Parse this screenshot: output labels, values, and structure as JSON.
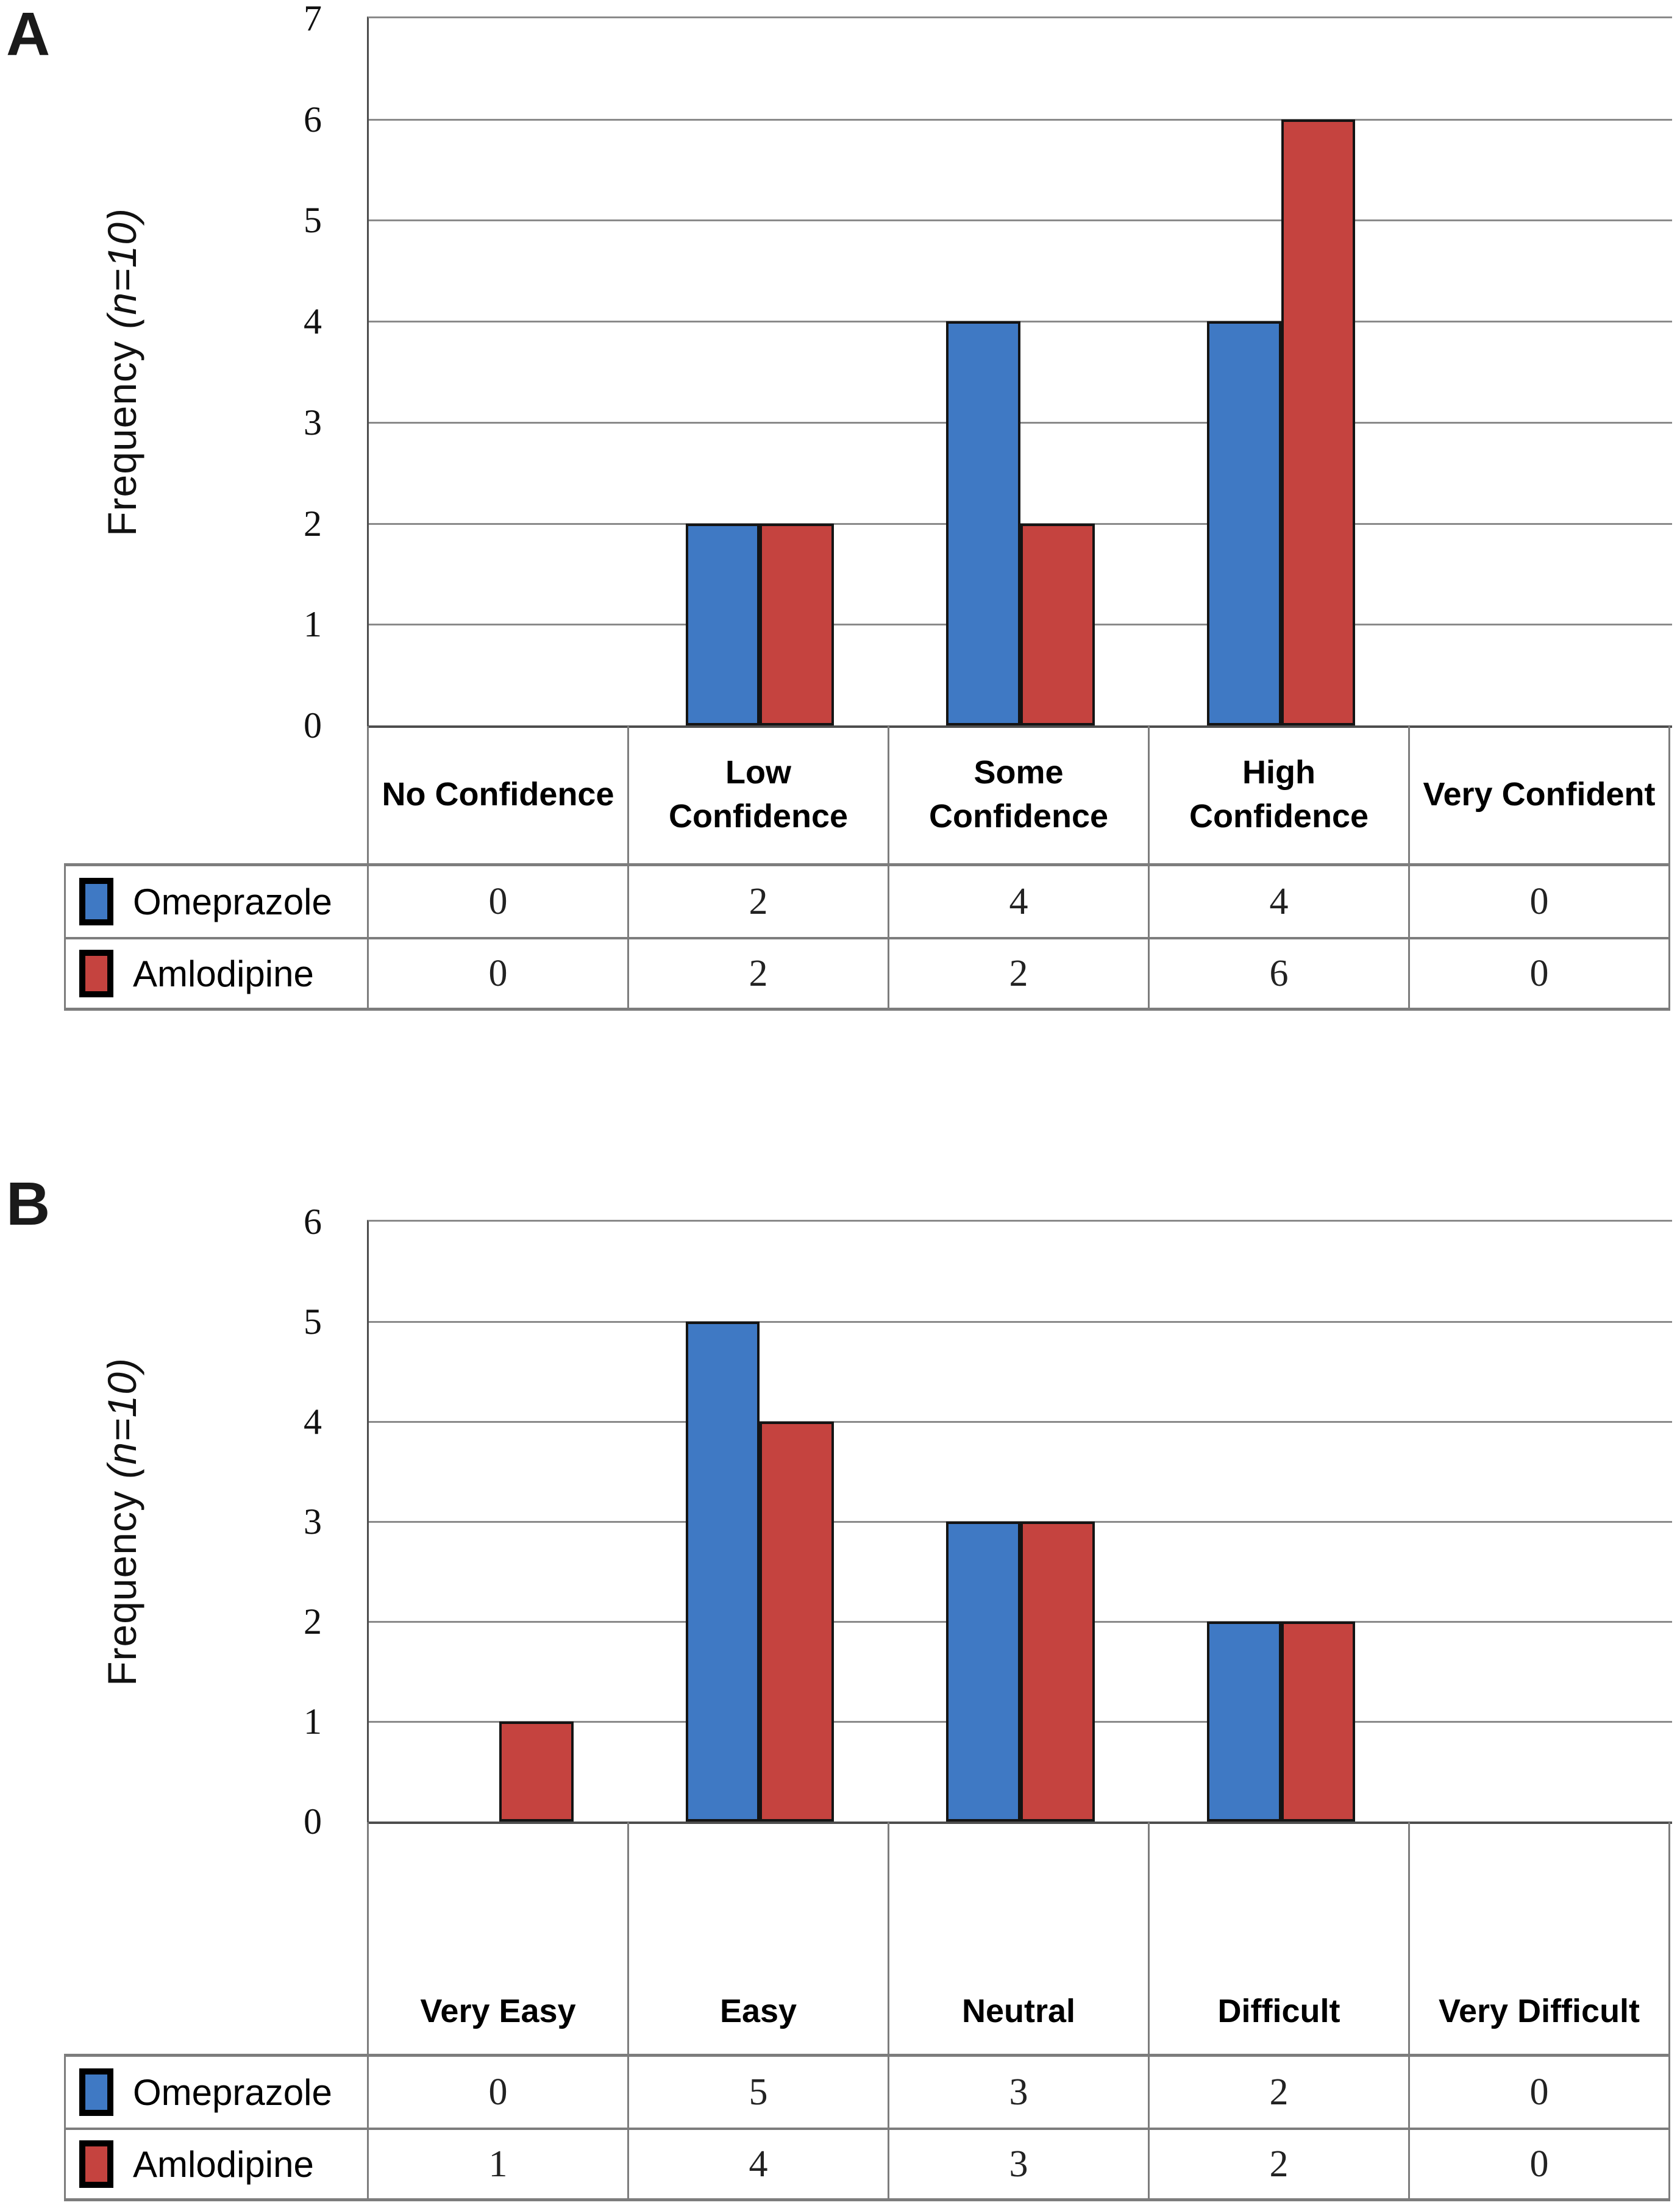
{
  "figure": {
    "panel_a_label": "A",
    "panel_b_label": "B",
    "y_axis_label_prefix": "Frequency ",
    "y_axis_label_italic": "(n=10)"
  },
  "series_colors": {
    "omeprazole": "#3F79C4",
    "amlodipine": "#C5433F"
  },
  "chart_data": [
    {
      "type": "bar",
      "panel": "A",
      "title": "",
      "xlabel": "",
      "ylabel": "Frequency (n=10)",
      "ylim": [
        0,
        7
      ],
      "yticks": [
        0,
        1,
        2,
        3,
        4,
        5,
        6,
        7
      ],
      "grid": true,
      "legend_position": "table-left",
      "categories": [
        "No Confidence",
        "Low Confidence",
        "Some Confidence",
        "High Confidence",
        "Very Confident"
      ],
      "series": [
        {
          "name": "Omeprazole",
          "color": "#3F79C4",
          "values": [
            0,
            2,
            4,
            4,
            0
          ]
        },
        {
          "name": "Amlodipine",
          "color": "#C5433F",
          "values": [
            0,
            2,
            2,
            6,
            0
          ]
        }
      ]
    },
    {
      "type": "bar",
      "panel": "B",
      "title": "",
      "xlabel": "",
      "ylabel": "Frequency (n=10)",
      "ylim": [
        0,
        6
      ],
      "yticks": [
        0,
        1,
        2,
        3,
        4,
        5,
        6
      ],
      "grid": true,
      "legend_position": "table-left",
      "categories": [
        "Very Easy",
        "Easy",
        "Neutral",
        "Difficult",
        "Very Difficult"
      ],
      "series": [
        {
          "name": "Omeprazole",
          "color": "#3F79C4",
          "values": [
            0,
            5,
            3,
            2,
            0
          ]
        },
        {
          "name": "Amlodipine",
          "color": "#C5433F",
          "values": [
            1,
            4,
            3,
            2,
            0
          ]
        }
      ]
    }
  ]
}
